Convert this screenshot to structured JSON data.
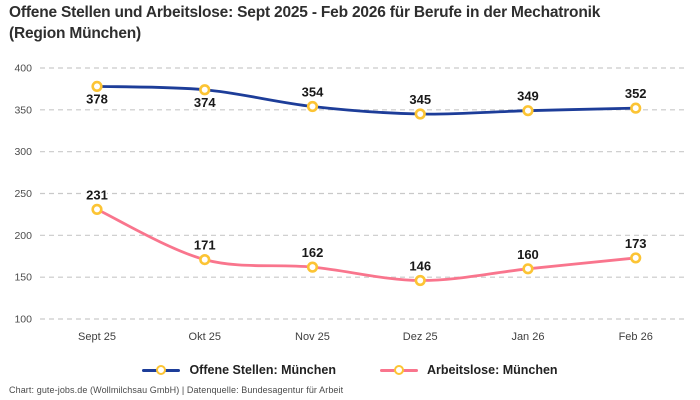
{
  "title": "Offene Stellen und Arbeitslose: Sept 2025 - Feb 2026 für Berufe in der Mechatronik\n(Region München)",
  "footer": "Chart: gute-jobs.de (Wollmilchsau GmbH) | Datenquelle: Bundesagentur für Arbeit",
  "colors": {
    "blue": "#1d3d99",
    "pink": "#f9758d",
    "marker": "#fcc434",
    "grid": "#c9c9c9",
    "axis_text": "#4c4c4c"
  },
  "chart_data": {
    "type": "line",
    "title": "Offene Stellen und Arbeitslose: Sept 2025 - Feb 2026 für Berufe in der Mechatronik (Region München)",
    "categories": [
      "Sept 25",
      "Okt 25",
      "Nov 25",
      "Dez 25",
      "Jan 26",
      "Feb 26"
    ],
    "series": [
      {
        "name": "Offene Stellen: München",
        "values": [
          378,
          374,
          354,
          345,
          349,
          352
        ],
        "color_key": "blue",
        "label_positions": [
          "below",
          "below",
          "above",
          "above",
          "above",
          "above"
        ]
      },
      {
        "name": "Arbeitslose: München",
        "values": [
          231,
          171,
          162,
          146,
          160,
          173
        ],
        "color_key": "pink",
        "label_positions": [
          "above",
          "above",
          "above",
          "above",
          "above",
          "above"
        ]
      }
    ],
    "ylim": [
      100,
      400
    ],
    "yticks": [
      100,
      150,
      200,
      250,
      300,
      350,
      400
    ],
    "grid": "dashed-horizontal",
    "marker": "open-circle-yellow",
    "legend_position": "bottom-center",
    "xlabel": "",
    "ylabel": ""
  }
}
